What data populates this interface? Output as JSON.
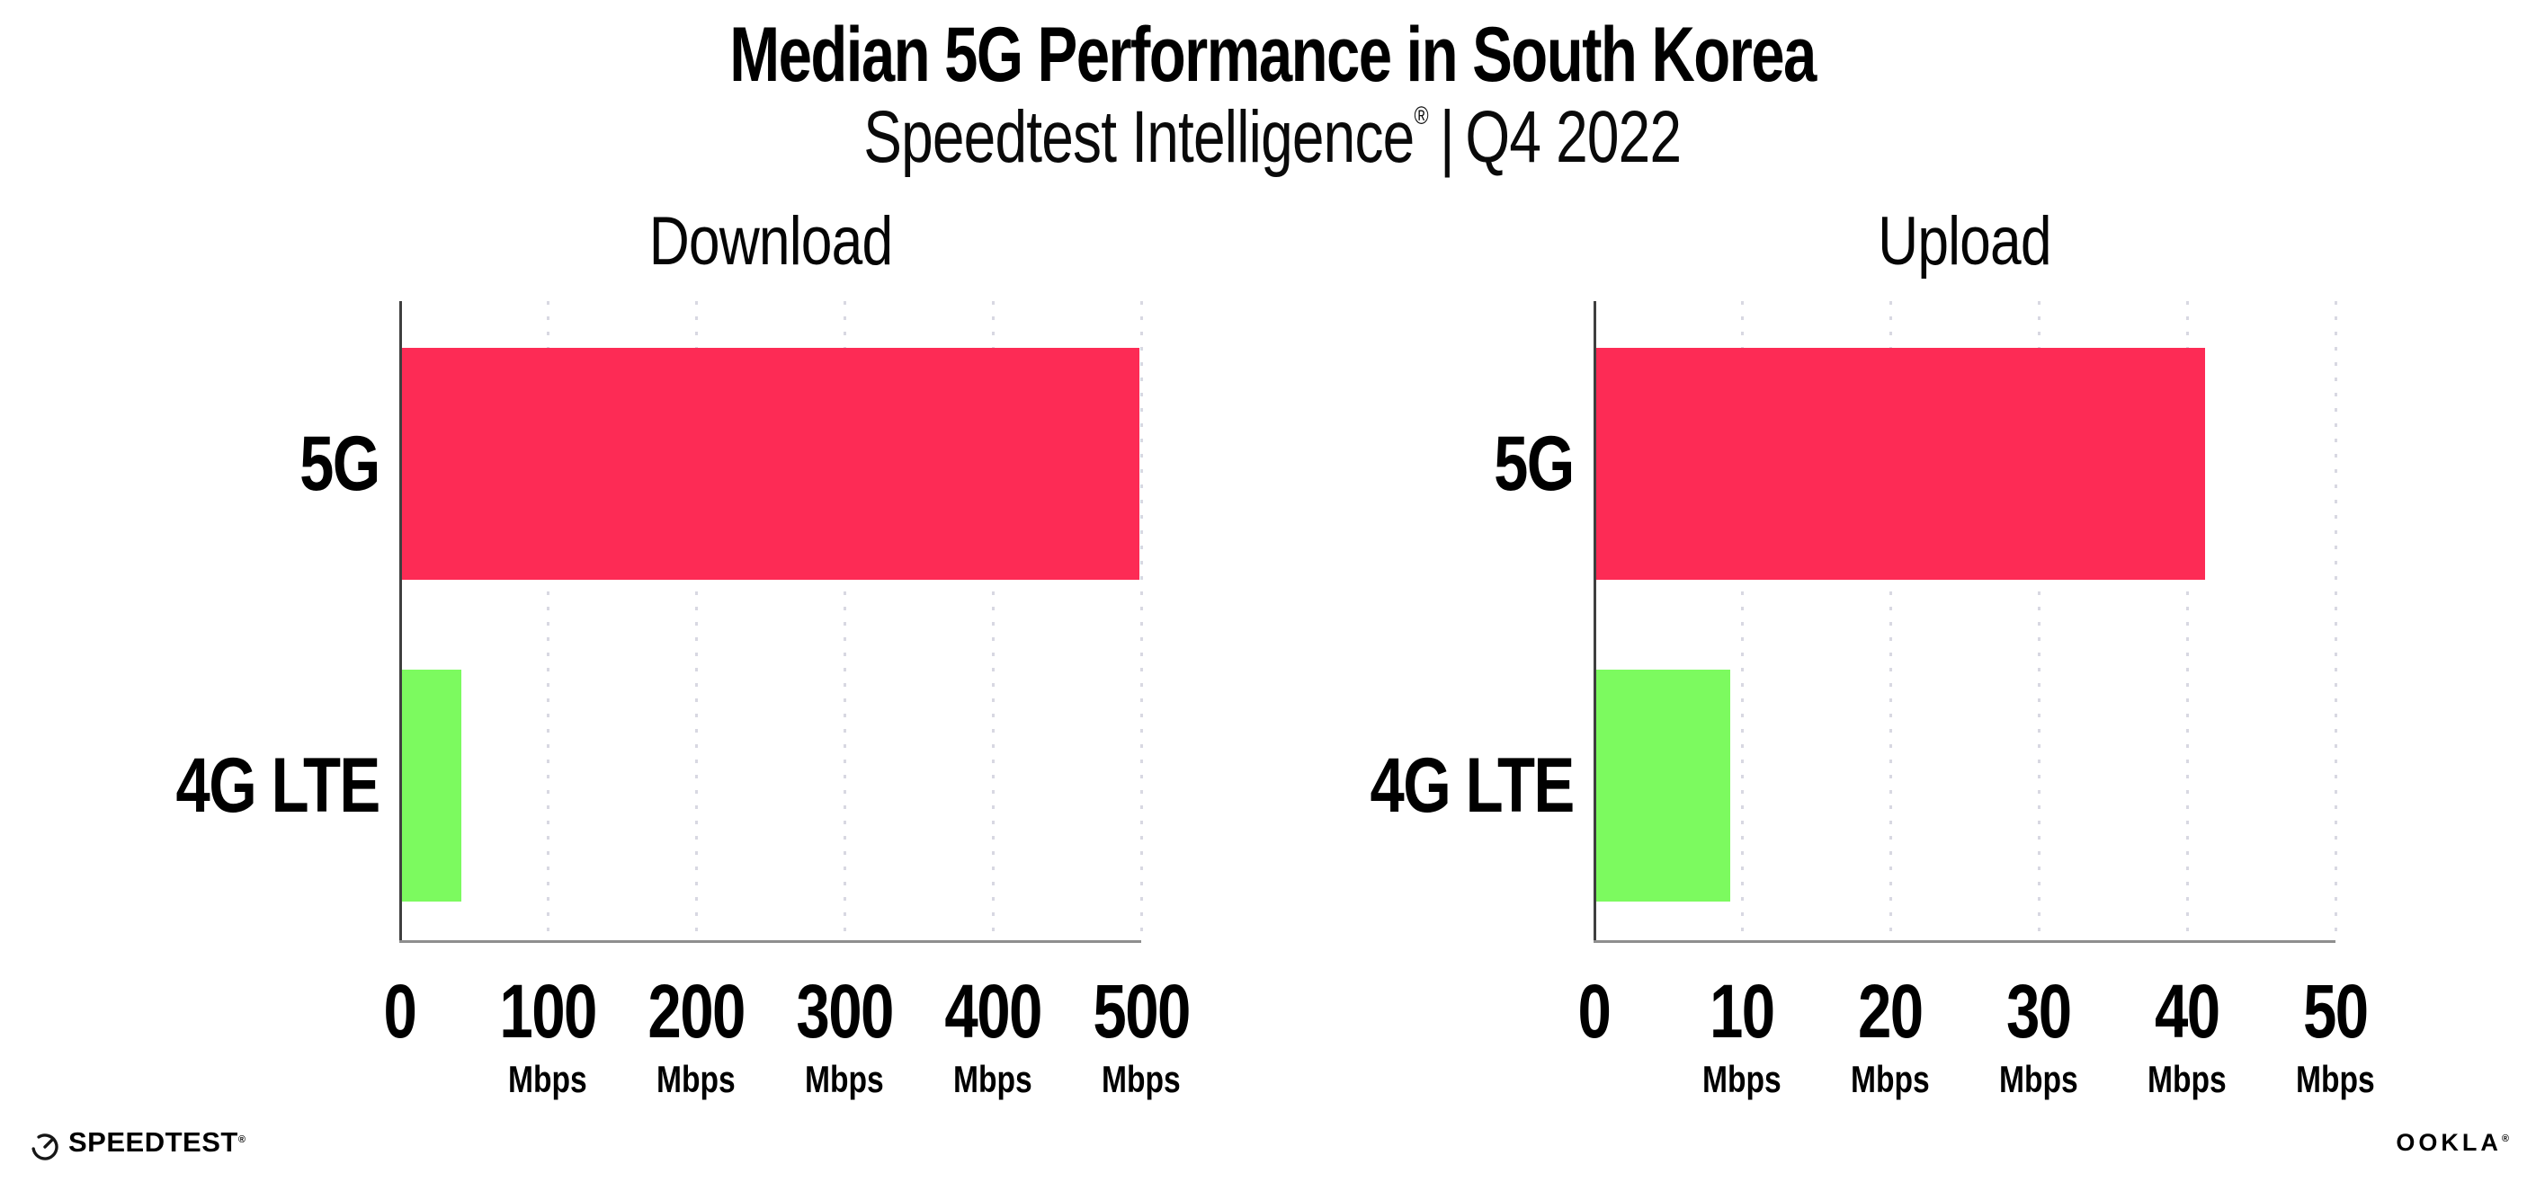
{
  "header": {
    "title": "Median 5G Performance in South Korea",
    "subtitle_brand": "Speedtest Intelligence",
    "subtitle_registered": "®",
    "subtitle_separator": "|",
    "subtitle_period": "Q4 2022"
  },
  "colors": {
    "bar_5g": "#fd2b55",
    "bar_4g_lte": "#7cfa5f",
    "gridline": "#d8d8e2",
    "x_axis": "#8e8e8e",
    "y_axis": "#3f3f3f",
    "text": "#000000",
    "background": "#ffffff"
  },
  "chart_data": [
    {
      "type": "bar",
      "orientation": "horizontal",
      "title": "Download",
      "categories": [
        "5G",
        "4G LTE"
      ],
      "values": [
        497,
        40
      ],
      "bar_colors": [
        "#fd2b55",
        "#7cfa5f"
      ],
      "xlim": [
        0,
        500
      ],
      "xticks": [
        0,
        100,
        200,
        300,
        400,
        500
      ],
      "tick_unit": "Mbps",
      "unit_on_zero": false,
      "grid": "dotted-vertical",
      "legend": "none"
    },
    {
      "type": "bar",
      "orientation": "horizontal",
      "title": "Upload",
      "categories": [
        "5G",
        "4G LTE"
      ],
      "values": [
        41,
        9
      ],
      "bar_colors": [
        "#fd2b55",
        "#7cfa5f"
      ],
      "xlim": [
        0,
        50
      ],
      "xticks": [
        0,
        10,
        20,
        30,
        40,
        50
      ],
      "tick_unit": "Mbps",
      "unit_on_zero": false,
      "grid": "dotted-vertical",
      "legend": "none"
    }
  ],
  "footer": {
    "speedtest_label": "SPEEDTEST",
    "speedtest_mark": "®",
    "speedtest_icon": "gauge-icon",
    "ookla_label": "OOKLA",
    "ookla_mark": "®"
  }
}
